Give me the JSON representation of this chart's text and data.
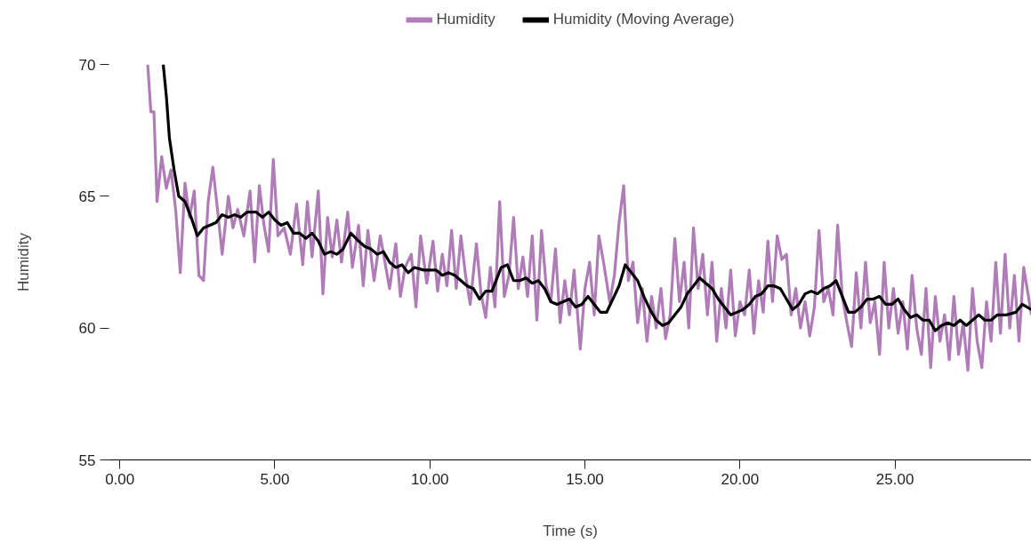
{
  "chart_data": {
    "type": "line",
    "xlabel": "Time (s)",
    "ylabel": "Humidity",
    "xlim": [
      -0.35,
      29.4
    ],
    "ylim": [
      55,
      70
    ],
    "xticks": [
      {
        "value": 0,
        "label": "0.00"
      },
      {
        "value": 5,
        "label": "5.00"
      },
      {
        "value": 10,
        "label": "10.00"
      },
      {
        "value": 15,
        "label": "15.00"
      },
      {
        "value": 20,
        "label": "20.00"
      },
      {
        "value": 25,
        "label": "25.00"
      }
    ],
    "yticks": [
      55,
      60,
      65,
      70
    ],
    "grid": false,
    "legend": "top",
    "marker": "none",
    "line_style": "solid",
    "series": [
      {
        "name": "Humidity",
        "color": "#b07cb8",
        "x": [
          0.9,
          1.0,
          1.1,
          1.2,
          1.35,
          1.5,
          1.65,
          1.8,
          1.95,
          2.1,
          2.25,
          2.4,
          2.55,
          2.7,
          2.85,
          3.0,
          3.15,
          3.3,
          3.5,
          3.65,
          3.8,
          4.0,
          4.2,
          4.35,
          4.5,
          4.65,
          4.8,
          4.95,
          5.1,
          5.3,
          5.5,
          5.7,
          5.9,
          6.05,
          6.2,
          6.4,
          6.55,
          6.7,
          6.85,
          7.0,
          7.15,
          7.35,
          7.5,
          7.7,
          7.85,
          8.0,
          8.2,
          8.4,
          8.55,
          8.7,
          8.9,
          9.05,
          9.2,
          9.4,
          9.55,
          9.7,
          9.9,
          10.1,
          10.25,
          10.4,
          10.55,
          10.7,
          10.85,
          11.0,
          11.15,
          11.3,
          11.5,
          11.65,
          11.8,
          11.95,
          12.1,
          12.25,
          12.4,
          12.55,
          12.7,
          12.85,
          13.0,
          13.15,
          13.3,
          13.45,
          13.6,
          13.75,
          13.9,
          14.05,
          14.2,
          14.35,
          14.5,
          14.65,
          14.85,
          15.0,
          15.15,
          15.3,
          15.45,
          15.6,
          15.8,
          15.95,
          16.1,
          16.25,
          16.4,
          16.55,
          16.7,
          16.85,
          17.0,
          17.15,
          17.3,
          17.45,
          17.6,
          17.75,
          17.9,
          18.05,
          18.2,
          18.35,
          18.5,
          18.65,
          18.8,
          18.95,
          19.1,
          19.25,
          19.4,
          19.55,
          19.7,
          19.85,
          20.0,
          20.15,
          20.3,
          20.45,
          20.6,
          20.75,
          20.9,
          21.05,
          21.2,
          21.35,
          21.5,
          21.65,
          21.8,
          21.95,
          22.1,
          22.25,
          22.4,
          22.55,
          22.7,
          22.85,
          23.0,
          23.15,
          23.3,
          23.45,
          23.6,
          23.75,
          23.9,
          24.05,
          24.2,
          24.35,
          24.5,
          24.65,
          24.8,
          24.95,
          25.1,
          25.25,
          25.4,
          25.55,
          25.7,
          25.85,
          26.0,
          26.15,
          26.3,
          26.45,
          26.6,
          26.75,
          26.9,
          27.05,
          27.2,
          27.35,
          27.5,
          27.65,
          27.8,
          27.95,
          28.1,
          28.25,
          28.4,
          28.55,
          28.7,
          28.85,
          29.0,
          29.15,
          29.4
        ],
        "values": [
          70,
          68.2,
          68.2,
          64.8,
          66.5,
          65.3,
          66,
          64.5,
          62.1,
          65.5,
          64.2,
          65.2,
          62,
          61.8,
          64.8,
          66.1,
          64.5,
          62.8,
          65,
          63.8,
          64.5,
          63.5,
          65.2,
          62.5,
          65.4,
          63.9,
          62.9,
          66.4,
          63.5,
          63.8,
          62.8,
          64.7,
          62.4,
          64.8,
          62.7,
          65.2,
          61.3,
          64.2,
          62.7,
          64.1,
          62.5,
          64.4,
          62.3,
          63.9,
          61.6,
          63.7,
          61.8,
          63.5,
          62.5,
          61.5,
          63.2,
          61.2,
          62.3,
          62.8,
          60.8,
          63.5,
          61.7,
          63.3,
          61.4,
          62.8,
          61.6,
          63.7,
          61.5,
          63.5,
          62,
          60.9,
          63.2,
          61.3,
          60.4,
          62.3,
          60.8,
          64.8,
          61.2,
          62.0,
          64.2,
          61.5,
          62.7,
          61.2,
          63.5,
          60.3,
          63.7,
          61.6,
          61.0,
          63.0,
          60.2,
          61.8,
          60.5,
          62.2,
          59.2,
          61.5,
          62.5,
          60.5,
          63.5,
          62.5,
          61.0,
          62.0,
          64.0,
          65.4,
          61.8,
          62.5,
          60.2,
          61.5,
          59.5,
          61.2,
          60.0,
          61.5,
          59.6,
          60.5,
          63.4,
          61.0,
          62.5,
          60.0,
          63.8,
          61.5,
          62.8,
          60.5,
          62.5,
          59.5,
          61.5,
          60.0,
          62.2,
          59.7,
          61.0,
          60.5,
          62.2,
          59.8,
          61.8,
          60.6,
          63.3,
          61.0,
          63.5,
          62.6,
          62.8,
          60.5,
          61.5,
          60.0,
          61.0,
          59.7,
          60.8,
          63.7,
          61.0,
          61.5,
          60.5,
          63.9,
          61.2,
          60.2,
          59.3,
          62.1,
          60.0,
          62.5,
          60.2,
          61.0,
          59.0,
          62.5,
          60.0,
          61.5,
          59.8,
          61.0,
          59.2,
          62.0,
          60.0,
          59.0,
          61.5,
          58.5,
          61.2,
          59.5,
          60.5,
          58.8,
          61.2,
          59.0,
          60.2,
          58.4,
          61.5,
          59.5,
          58.5,
          61.0,
          59.5,
          62.5,
          59.8,
          62.8,
          60.0,
          62.0,
          59.5,
          62.3,
          60.5
        ]
      },
      {
        "name": "Humidity (Moving Average)",
        "color": "#000000",
        "x": [
          1.4,
          1.5,
          1.6,
          1.75,
          1.9,
          2.1,
          2.3,
          2.5,
          2.7,
          2.9,
          3.1,
          3.3,
          3.5,
          3.7,
          3.9,
          4.1,
          4.4,
          4.6,
          4.8,
          5.0,
          5.2,
          5.4,
          5.6,
          5.8,
          6.0,
          6.2,
          6.4,
          6.6,
          6.8,
          7.0,
          7.2,
          7.45,
          7.7,
          7.9,
          8.1,
          8.3,
          8.5,
          8.7,
          8.9,
          9.1,
          9.3,
          9.5,
          9.8,
          10.0,
          10.2,
          10.4,
          10.6,
          10.8,
          11.0,
          11.2,
          11.4,
          11.6,
          11.8,
          12.0,
          12.3,
          12.5,
          12.7,
          12.9,
          13.1,
          13.3,
          13.5,
          13.7,
          13.9,
          14.1,
          14.3,
          14.5,
          14.7,
          14.9,
          15.1,
          15.3,
          15.5,
          15.7,
          15.9,
          16.1,
          16.3,
          16.5,
          16.7,
          16.9,
          17.1,
          17.3,
          17.5,
          17.7,
          17.9,
          18.1,
          18.3,
          18.5,
          18.7,
          18.9,
          19.1,
          19.3,
          19.5,
          19.7,
          19.9,
          20.1,
          20.3,
          20.5,
          20.7,
          20.9,
          21.1,
          21.3,
          21.5,
          21.7,
          21.9,
          22.1,
          22.3,
          22.5,
          22.7,
          22.9,
          23.1,
          23.3,
          23.5,
          23.7,
          23.9,
          24.1,
          24.3,
          24.5,
          24.7,
          24.9,
          25.1,
          25.3,
          25.5,
          25.7,
          25.9,
          26.1,
          26.3,
          26.5,
          26.7,
          26.9,
          27.1,
          27.3,
          27.5,
          27.7,
          27.9,
          28.1,
          28.3,
          28.6,
          28.9,
          29.1,
          29.4
        ],
        "values": [
          70,
          68.8,
          67.2,
          66,
          65,
          64.8,
          64.2,
          63.5,
          63.8,
          63.9,
          64.0,
          64.3,
          64.2,
          64.3,
          64.2,
          64.4,
          64.4,
          64.2,
          64.4,
          64.1,
          63.9,
          64.0,
          63.6,
          63.6,
          63.4,
          63.6,
          63.3,
          62.8,
          62.9,
          62.8,
          63.0,
          63.6,
          63.3,
          63.1,
          63.0,
          62.8,
          62.9,
          62.5,
          62.3,
          62.4,
          62.1,
          62.3,
          62.2,
          62.2,
          62.2,
          62.0,
          62.1,
          62.0,
          61.8,
          61.6,
          61.5,
          61.1,
          61.4,
          61.4,
          62.3,
          62.4,
          61.8,
          61.8,
          61.9,
          61.7,
          61.8,
          61.5,
          61.0,
          60.9,
          61.0,
          61.1,
          60.8,
          60.9,
          61.2,
          60.9,
          60.6,
          60.6,
          61.1,
          61.6,
          62.4,
          62.1,
          61.8,
          61.2,
          60.7,
          60.3,
          60.1,
          60.2,
          60.5,
          60.8,
          61.3,
          61.6,
          61.9,
          61.7,
          61.5,
          61.1,
          60.8,
          60.5,
          60.6,
          60.7,
          60.9,
          61.2,
          61.3,
          61.6,
          61.6,
          61.5,
          61.1,
          60.7,
          60.9,
          61.3,
          61.4,
          61.3,
          61.5,
          61.6,
          61.8,
          61.2,
          60.6,
          60.6,
          60.8,
          61.1,
          61.1,
          61.2,
          60.9,
          60.9,
          61.1,
          60.7,
          60.4,
          60.5,
          60.3,
          60.3,
          59.9,
          60.1,
          60.2,
          60.1,
          60.3,
          60.1,
          60.3,
          60.5,
          60.3,
          60.3,
          60.5,
          60.5,
          60.6,
          60.9,
          60.7
        ]
      }
    ]
  }
}
